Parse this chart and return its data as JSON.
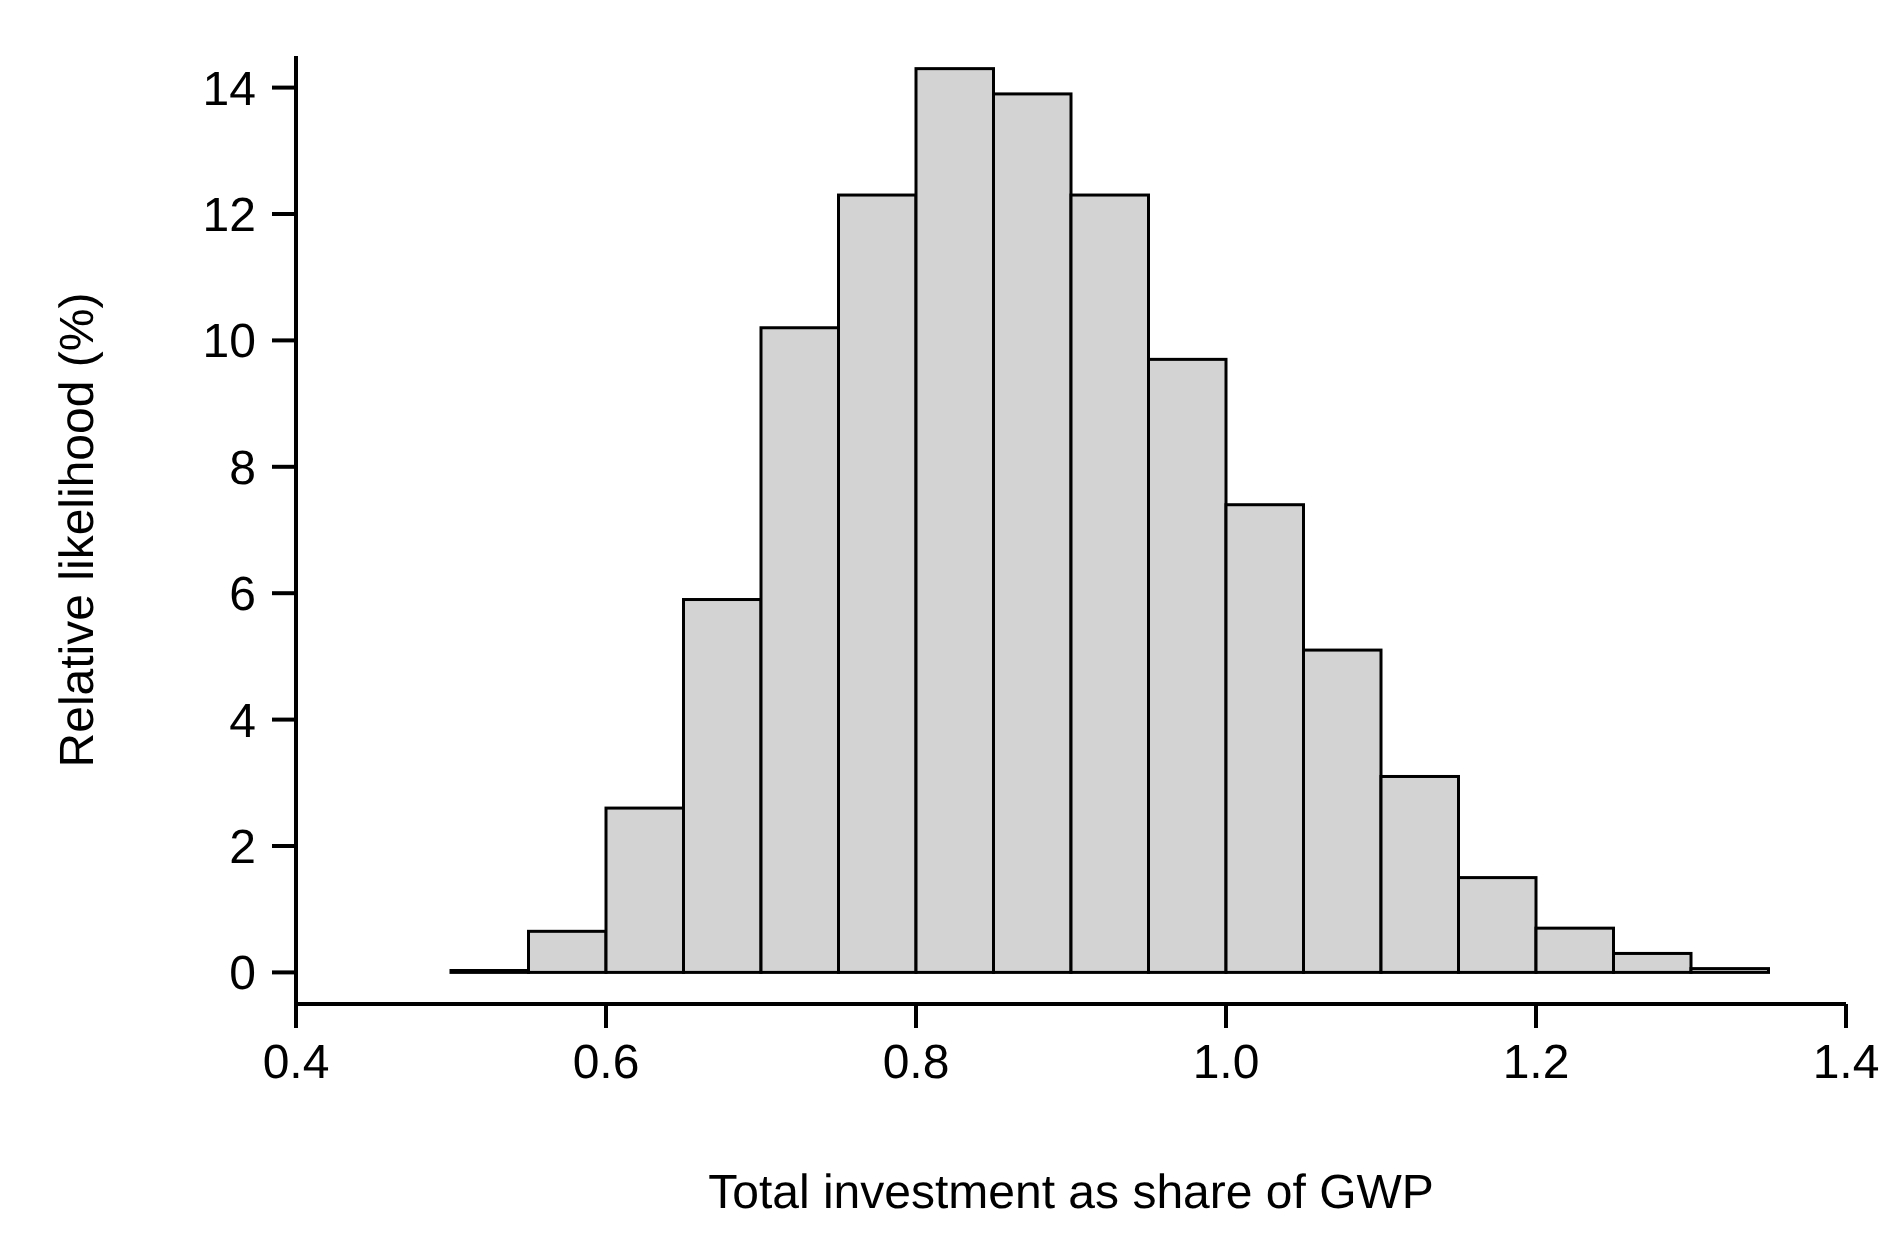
{
  "chart_data": {
    "type": "histogram",
    "xlabel": "Total investment as share of GWP",
    "ylabel": "Relative likelihood (%)",
    "bins": [
      0.5,
      0.55,
      0.6,
      0.65,
      0.7,
      0.75,
      0.8,
      0.85,
      0.9,
      0.95,
      1.0,
      1.05,
      1.1,
      1.15,
      1.2,
      1.25,
      1.3,
      1.35
    ],
    "values": [
      0.03,
      0.65,
      2.6,
      5.9,
      10.2,
      12.3,
      14.3,
      13.9,
      12.3,
      9.7,
      7.4,
      5.1,
      3.1,
      1.5,
      0.7,
      0.3,
      0.06
    ],
    "color": "#d3d3d3",
    "xlim": [
      0.4,
      1.4
    ],
    "xticks": [
      {
        "value": 0.4,
        "label": "0.4"
      },
      {
        "value": 0.6,
        "label": "0.6"
      },
      {
        "value": 0.8,
        "label": "0.8"
      },
      {
        "value": 1.0,
        "label": "1.0"
      },
      {
        "value": 1.2,
        "label": "1.2"
      },
      {
        "value": 1.4,
        "label": "1.4"
      }
    ],
    "ylim": [
      -0.5,
      14.5
    ],
    "yticks": [
      0,
      2,
      4,
      6,
      8,
      10,
      12,
      14
    ],
    "grid": false,
    "legend": false
  }
}
